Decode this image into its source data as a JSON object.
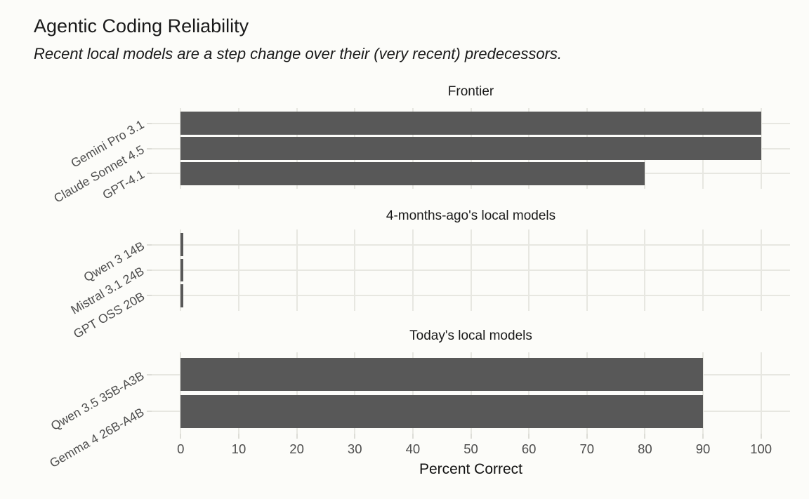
{
  "title": "Agentic Coding Reliability",
  "subtitle": "Recent local models are a step change over their (very recent) predecessors.",
  "chart_data": {
    "type": "bar",
    "orientation": "horizontal",
    "title": "Agentic Coding Reliability",
    "subtitle": "Recent local models are a step change over their (very recent) predecessors.",
    "xlabel": "Percent Correct",
    "ylabel": "",
    "xlim": [
      -5,
      105
    ],
    "x_ticks": [
      0,
      10,
      20,
      30,
      40,
      50,
      60,
      70,
      80,
      90,
      100
    ],
    "grid": true,
    "legend": false,
    "facets": [
      {
        "title": "Frontier",
        "categories": [
          "Gemini Pro 3.1",
          "Claude Sonnet 4.5",
          "GPT-4.1"
        ],
        "values": [
          100,
          100,
          80
        ]
      },
      {
        "title": "4-months-ago's local models",
        "categories": [
          "Qwen 3 14B",
          "Mistral 3.1 24B",
          "GPT OSS 20B"
        ],
        "values": [
          0.5,
          0.5,
          0.5
        ]
      },
      {
        "title": "Today's local models",
        "categories": [
          "Qwen 3.5 35B-A3B",
          "Gemma 4 26B-A4B"
        ],
        "values": [
          90,
          90
        ]
      }
    ]
  },
  "colors": {
    "background": "#FCFCF9",
    "bar": "#585858",
    "gridline": "#E7E7E1",
    "tick_mark": "#DDDDD7",
    "axis_text": "#4d4d4d",
    "title_text": "#1a1a1a"
  }
}
